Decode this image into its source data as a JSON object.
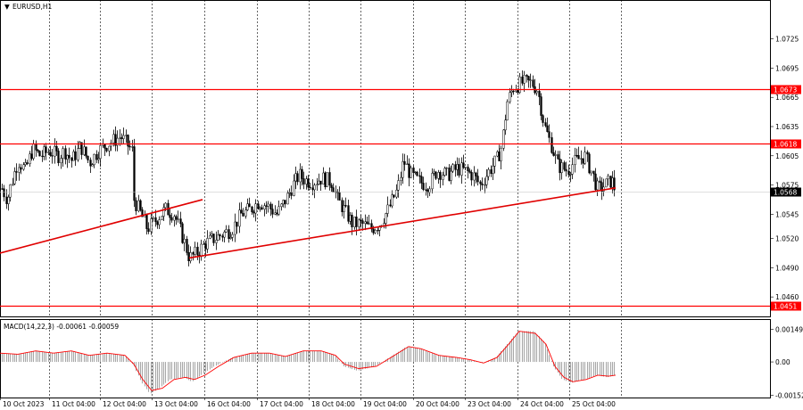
{
  "window": {
    "symbol_menu_glyph": "▼",
    "title": "EURUSD,H1"
  },
  "colors": {
    "background": "#ffffff",
    "candle": "#000000",
    "level": "#ff0000",
    "trend": "#e00000",
    "grid": "#000000",
    "macd_hist": "#a8a8a8",
    "macd_signal": "#ff0000",
    "price_line": "#c0c0c0"
  },
  "chart_data": [
    {
      "type": "candlestick",
      "title": "EURUSD,H1",
      "ylim": [
        1.044,
        1.0765
      ],
      "y_ticks": [
        "1.0725",
        "1.0695",
        "1.0665",
        "1.0635",
        "1.0605",
        "1.0575",
        "1.0545",
        "1.0520",
        "1.0490",
        "1.0460"
      ],
      "x_ticks": [
        "10 Oct 2023",
        "11 Oct 04:00",
        "12 Oct 04:00",
        "13 Oct 04:00",
        "16 Oct 04:00",
        "17 Oct 04:00",
        "18 Oct 04:00",
        "19 Oct 04:00",
        "20 Oct 04:00",
        "23 Oct 04:00",
        "24 Oct 04:00",
        "25 Oct 04:00"
      ],
      "close_path": [
        [
          0,
          1.0575
        ],
        [
          8,
          1.056
        ],
        [
          12,
          1.0575
        ],
        [
          20,
          1.06
        ],
        [
          28,
          1.059
        ],
        [
          36,
          1.0612
        ],
        [
          45,
          1.0605
        ],
        [
          55,
          1.061
        ],
        [
          65,
          1.0605
        ],
        [
          72,
          1.061
        ],
        [
          80,
          1.06
        ],
        [
          90,
          1.0615
        ],
        [
          100,
          1.0598
        ],
        [
          110,
          1.061
        ],
        [
          120,
          1.0617
        ],
        [
          135,
          1.0625
        ],
        [
          148,
          1.061
        ],
        [
          150,
          1.056
        ],
        [
          158,
          1.0545
        ],
        [
          165,
          1.053
        ],
        [
          175,
          1.054
        ],
        [
          185,
          1.055
        ],
        [
          195,
          1.0545
        ],
        [
          205,
          1.052
        ],
        [
          212,
          1.05
        ],
        [
          220,
          1.0505
        ],
        [
          230,
          1.0515
        ],
        [
          240,
          1.052
        ],
        [
          250,
          1.0525
        ],
        [
          260,
          1.053
        ],
        [
          270,
          1.0545
        ],
        [
          280,
          1.055
        ],
        [
          290,
          1.0558
        ],
        [
          300,
          1.0553
        ],
        [
          310,
          1.0545
        ],
        [
          320,
          1.056
        ],
        [
          328,
          1.0575
        ],
        [
          335,
          1.0585
        ],
        [
          342,
          1.058
        ],
        [
          350,
          1.0578
        ],
        [
          360,
          1.0582
        ],
        [
          372,
          1.0578
        ],
        [
          378,
          1.056
        ],
        [
          385,
          1.055
        ],
        [
          395,
          1.0535
        ],
        [
          405,
          1.0535
        ],
        [
          415,
          1.053
        ],
        [
          425,
          1.0535
        ],
        [
          435,
          1.055
        ],
        [
          445,
          1.057
        ],
        [
          452,
          1.06
        ],
        [
          460,
          1.0585
        ],
        [
          470,
          1.0578
        ],
        [
          480,
          1.0575
        ],
        [
          490,
          1.059
        ],
        [
          500,
          1.0585
        ],
        [
          512,
          1.0592
        ],
        [
          520,
          1.059
        ],
        [
          530,
          1.0585
        ],
        [
          538,
          1.0575
        ],
        [
          548,
          1.059
        ],
        [
          556,
          1.06
        ],
        [
          562,
          1.0615
        ],
        [
          568,
          1.066
        ],
        [
          575,
          1.0675
        ],
        [
          585,
          1.068
        ],
        [
          595,
          1.068
        ],
        [
          602,
          1.0673
        ],
        [
          610,
          1.0635
        ],
        [
          618,
          1.0615
        ],
        [
          625,
          1.0595
        ],
        [
          635,
          1.059
        ],
        [
          645,
          1.06
        ],
        [
          655,
          1.0605
        ],
        [
          662,
          1.059
        ],
        [
          670,
          1.057
        ],
        [
          678,
          1.0575
        ],
        [
          685,
          1.058
        ],
        [
          690,
          1.0568
        ]
      ],
      "levels": [
        {
          "value": 1.0673,
          "label": "1.0673"
        },
        {
          "value": 1.0618,
          "label": "1.0618"
        },
        {
          "value": 1.0451,
          "label": "1.0451"
        }
      ],
      "current_price": {
        "value": 1.0568,
        "label": "1.0568"
      },
      "trendlines": [
        {
          "name": "trendline-1",
          "start": [
            "start",
            1.0505
          ],
          "end": [
            "13 Oct",
            1.056
          ]
        },
        {
          "name": "trendline-2",
          "start": [
            "13 Oct 04:00",
            1.05
          ],
          "end": [
            "25 Oct",
            1.0572
          ]
        }
      ]
    },
    {
      "type": "bar",
      "title": "MACD(14,22,3) -0.00061 -0.00059",
      "ylim": [
        -0.00162,
        0.00195
      ],
      "y_ticks": [
        "0.00149",
        "0.00",
        "-0.00152"
      ],
      "series": [
        {
          "name": "MACD",
          "type": "histogram",
          "points": [
            [
              0,
              0.0004
            ],
            [
              20,
              0.00035
            ],
            [
              40,
              0.0005
            ],
            [
              60,
              0.0004
            ],
            [
              80,
              0.0005
            ],
            [
              100,
              0.0003
            ],
            [
              120,
              0.0004
            ],
            [
              140,
              0.0003
            ],
            [
              150,
              -0.0002
            ],
            [
              158,
              -0.0009
            ],
            [
              168,
              -0.00145
            ],
            [
              178,
              -0.0012
            ],
            [
              190,
              -0.0008
            ],
            [
              205,
              -0.0007
            ],
            [
              215,
              -0.0009
            ],
            [
              225,
              -0.0006
            ],
            [
              240,
              -0.0002
            ],
            [
              260,
              0.0002
            ],
            [
              280,
              0.0004
            ],
            [
              300,
              0.0004
            ],
            [
              320,
              0.00025
            ],
            [
              340,
              0.0005
            ],
            [
              360,
              0.0005
            ],
            [
              375,
              0.0003
            ],
            [
              385,
              -0.0002
            ],
            [
              400,
              -0.0004
            ],
            [
              420,
              -0.0002
            ],
            [
              440,
              0.0003
            ],
            [
              455,
              0.0007
            ],
            [
              470,
              0.0006
            ],
            [
              490,
              0.0003
            ],
            [
              510,
              0.0002
            ],
            [
              525,
              0.0001
            ],
            [
              540,
              -5e-05
            ],
            [
              555,
              0.0002
            ],
            [
              568,
              0.0008
            ],
            [
              580,
              0.0014
            ],
            [
              598,
              0.0014
            ],
            [
              610,
              0.0009
            ],
            [
              620,
              -0.0002
            ],
            [
              630,
              -0.0008
            ],
            [
              640,
              -0.00095
            ],
            [
              655,
              -0.0008
            ],
            [
              668,
              -0.0006
            ],
            [
              680,
              -0.0007
            ],
            [
              690,
              -0.0006
            ]
          ]
        },
        {
          "name": "Signal",
          "type": "line",
          "points": [
            [
              0,
              0.0004
            ],
            [
              20,
              0.00035
            ],
            [
              40,
              0.0005
            ],
            [
              60,
              0.0004
            ],
            [
              80,
              0.0005
            ],
            [
              100,
              0.0003
            ],
            [
              120,
              0.0004
            ],
            [
              140,
              0.0003
            ],
            [
              150,
              -0.0001
            ],
            [
              160,
              -0.0008
            ],
            [
              170,
              -0.0013
            ],
            [
              182,
              -0.0012
            ],
            [
              195,
              -0.0008
            ],
            [
              208,
              -0.0007
            ],
            [
              218,
              -0.0008
            ],
            [
              230,
              -0.0006
            ],
            [
              245,
              -0.0002
            ],
            [
              262,
              0.0002
            ],
            [
              282,
              0.0004
            ],
            [
              302,
              0.0004
            ],
            [
              320,
              0.00025
            ],
            [
              340,
              0.0005
            ],
            [
              360,
              0.0005
            ],
            [
              376,
              0.0003
            ],
            [
              386,
              -0.0001
            ],
            [
              402,
              -0.0003
            ],
            [
              422,
              -0.0002
            ],
            [
              442,
              0.0003
            ],
            [
              458,
              0.0007
            ],
            [
              472,
              0.0006
            ],
            [
              492,
              0.0003
            ],
            [
              512,
              0.0002
            ],
            [
              527,
              0.0001
            ],
            [
              542,
              -5e-05
            ],
            [
              557,
              0.0002
            ],
            [
              570,
              0.0008
            ],
            [
              582,
              0.0014
            ],
            [
              600,
              0.0013
            ],
            [
              612,
              0.0008
            ],
            [
              622,
              -0.0002
            ],
            [
              632,
              -0.0007
            ],
            [
              642,
              -0.0009
            ],
            [
              657,
              -0.0008
            ],
            [
              670,
              -0.0006
            ],
            [
              682,
              -0.00065
            ],
            [
              690,
              -0.0006
            ]
          ]
        }
      ]
    }
  ]
}
